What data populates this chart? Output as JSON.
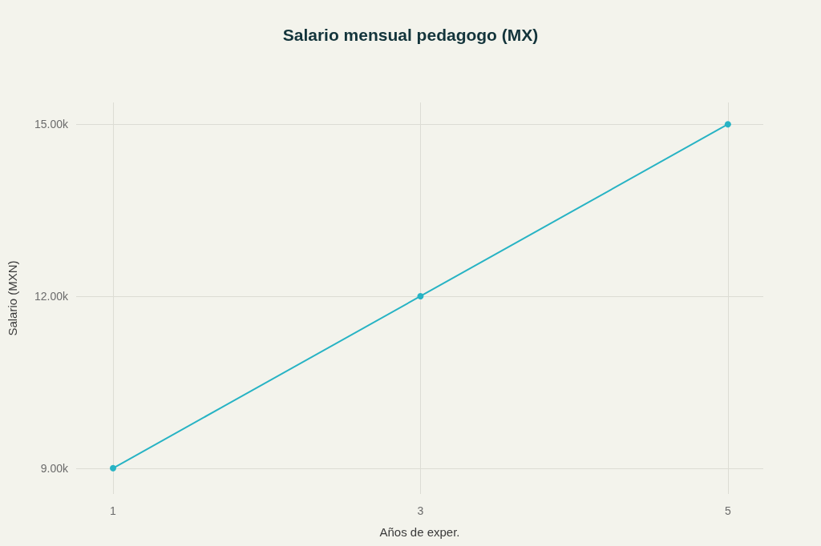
{
  "chart_data": {
    "type": "line",
    "title": "Salario mensual pedagogo (MX)",
    "xlabel": "Años de exper.",
    "ylabel": "Salario (MXN)",
    "x": [
      1,
      3,
      5
    ],
    "values": [
      9000,
      12000,
      15000
    ],
    "color": "#27b3c4",
    "xlim": [
      0.76,
      5.23
    ],
    "xticks": [
      1,
      3,
      5
    ],
    "ylim": [
      8550,
      15380
    ],
    "yticks": [
      {
        "value": 9000,
        "label": "9.00k"
      },
      {
        "value": 12000,
        "label": "12.00k"
      },
      {
        "value": 15000,
        "label": "15.00k"
      }
    ],
    "grid": true,
    "marker": "circle"
  }
}
